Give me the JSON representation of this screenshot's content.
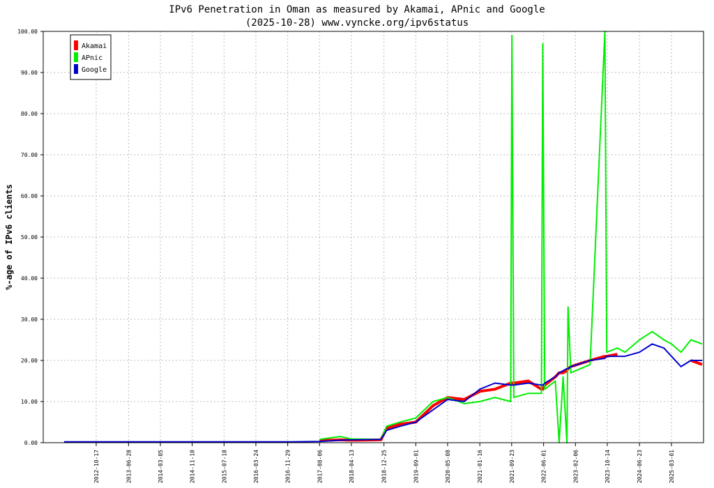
{
  "chart_data": {
    "type": "line",
    "title": "IPv6 Penetration in Oman as measured by Akamai, APnic and Google",
    "subtitle": "(2025-10-28) www.vyncke.org/ipv6status",
    "y_label": "%-age of IPv6 clients",
    "x": [
      "2012-02-08",
      "2012-10-17",
      "2013-06-28",
      "2015-01-01",
      "2017-01-01",
      "2017-08-06",
      "2018-01-15",
      "2018-04-13",
      "2018-12-01",
      "2019-01-15",
      "2019-05-01",
      "2019-09-01",
      "2020-01-15",
      "2020-05-08",
      "2020-09-15",
      "2021-01-16",
      "2021-05-15",
      "2021-09-15",
      "2021-09-25",
      "2021-10-10",
      "2022-02-01",
      "2022-05-15",
      "2022-05-25",
      "2022-06-10",
      "2022-09-01",
      "2022-10-01",
      "2022-11-01",
      "2022-12-01",
      "2022-12-10",
      "2023-01-01",
      "2023-06-01",
      "2023-09-25",
      "2023-10-10",
      "2024-01-01",
      "2024-03-01",
      "2024-06-23",
      "2024-10-01",
      "2025-01-01",
      "2025-03-01",
      "2025-05-15",
      "2025-08-01",
      "2025-10-28"
    ],
    "series": [
      {
        "name": "Akamai",
        "color": "#ff0000",
        "width": 4,
        "values": [
          null,
          null,
          null,
          null,
          null,
          0.5,
          0.7,
          0.6,
          0.7,
          3.5,
          4.5,
          5,
          9,
          11,
          10.5,
          12.5,
          13,
          14.5,
          14.5,
          14.5,
          15,
          13,
          13,
          14,
          16,
          17,
          17,
          17.5,
          18,
          18.5,
          20,
          21,
          21,
          21.5,
          null,
          null,
          null,
          null,
          null,
          null,
          20,
          19
        ]
      },
      {
        "name": "APnic",
        "color": "#00ee00",
        "width": 2,
        "values": [
          null,
          0.6,
          null,
          null,
          null,
          0.8,
          1.5,
          0.9,
          0.8,
          4,
          5,
          6,
          10,
          11,
          9.5,
          10,
          11,
          10,
          99,
          11,
          12,
          12,
          97,
          13,
          15,
          0,
          16,
          0,
          33,
          17,
          19,
          100,
          22,
          23,
          22,
          25,
          27,
          25,
          24,
          22,
          25,
          24
        ]
      },
      {
        "name": "Google",
        "color": "#0000cc",
        "width": 2,
        "values": [
          0.2,
          0.2,
          0.2,
          0.2,
          0.2,
          0.3,
          0.6,
          0.7,
          0.8,
          3,
          4,
          5,
          8,
          10.5,
          10,
          13,
          14.5,
          14,
          14,
          14,
          14.5,
          14,
          14,
          14.5,
          16,
          17,
          17.5,
          18,
          18,
          18.5,
          20,
          20.5,
          21,
          21,
          21,
          22,
          24,
          23,
          21,
          18.5,
          20,
          20
        ]
      }
    ],
    "xlim": [
      "2011-08-28",
      "2025-11-08"
    ],
    "xticks": [
      "2012-10-17",
      "2013-06-28",
      "2014-03-05",
      "2014-11-10",
      "2015-07-18",
      "2016-03-24",
      "2016-11-29",
      "2017-08-06",
      "2018-04-13",
      "2018-12-25",
      "2019-09-01",
      "2020-05-08",
      "2021-01-16",
      "2021-09-23",
      "2022-06-01",
      "2023-02-06",
      "2023-10-14",
      "2024-06-23",
      "2025-03-01"
    ],
    "ylim": [
      0,
      100
    ],
    "yticks": [
      {
        "value": 0,
        "label": "0.00"
      },
      {
        "value": 10,
        "label": "10.00"
      },
      {
        "value": 20,
        "label": "20.00"
      },
      {
        "value": 30,
        "label": "30.00"
      },
      {
        "value": 40,
        "label": "40.00"
      },
      {
        "value": 50,
        "label": "50.00"
      },
      {
        "value": 60,
        "label": "60.00"
      },
      {
        "value": 70,
        "label": "70.00"
      },
      {
        "value": 80,
        "label": "80.00"
      },
      {
        "value": 90,
        "label": "90.00"
      },
      {
        "value": 100,
        "label": "100.00"
      }
    ],
    "grid": true,
    "legend": "top-left"
  }
}
